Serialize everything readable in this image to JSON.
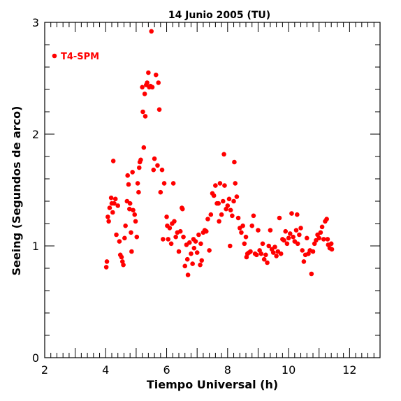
{
  "chart_data": {
    "type": "scatter",
    "title": "14 Junio 2005 (TU)",
    "xlabel": "Tiempo Universal (h)",
    "ylabel": "Seeing (Segundos de arco)",
    "xlim": [
      2,
      13
    ],
    "ylim": [
      0,
      3
    ],
    "xticks": [
      2,
      4,
      6,
      8,
      10,
      12
    ],
    "yticks": [
      0,
      1,
      2,
      3
    ],
    "grid": false,
    "legend": {
      "position": "top-left",
      "label": "T4-SPM",
      "color": "#ff0000"
    },
    "series": [
      {
        "name": "T4-SPM",
        "color": "#ff0000",
        "points": [
          [
            2.32,
            2.7
          ],
          [
            4.02,
            0.81
          ],
          [
            4.04,
            0.86
          ],
          [
            4.07,
            1.26
          ],
          [
            4.1,
            1.22
          ],
          [
            4.13,
            1.34
          ],
          [
            4.18,
            1.43
          ],
          [
            4.2,
            1.38
          ],
          [
            4.23,
            1.3
          ],
          [
            4.25,
            1.76
          ],
          [
            4.28,
            1.38
          ],
          [
            4.32,
            1.42
          ],
          [
            4.35,
            1.1
          ],
          [
            4.4,
            1.36
          ],
          [
            4.45,
            1.04
          ],
          [
            4.48,
            0.92
          ],
          [
            4.52,
            0.9
          ],
          [
            4.55,
            0.86
          ],
          [
            4.58,
            0.83
          ],
          [
            4.62,
            1.07
          ],
          [
            4.65,
            1.18
          ],
          [
            4.7,
            1.4
          ],
          [
            4.72,
            1.63
          ],
          [
            4.75,
            1.55
          ],
          [
            4.78,
            1.33
          ],
          [
            4.8,
            1.38
          ],
          [
            4.83,
            1.12
          ],
          [
            4.85,
            0.95
          ],
          [
            4.88,
            1.66
          ],
          [
            4.9,
            1.32
          ],
          [
            4.95,
            1.28
          ],
          [
            4.98,
            1.22
          ],
          [
            5.02,
            1.08
          ],
          [
            5.05,
            1.56
          ],
          [
            5.08,
            1.48
          ],
          [
            5.1,
            1.7
          ],
          [
            5.12,
            1.75
          ],
          [
            5.15,
            1.77
          ],
          [
            5.2,
            2.42
          ],
          [
            5.22,
            2.2
          ],
          [
            5.25,
            1.88
          ],
          [
            5.28,
            2.36
          ],
          [
            5.3,
            2.16
          ],
          [
            5.33,
            2.44
          ],
          [
            5.36,
            2.46
          ],
          [
            5.4,
            2.55
          ],
          [
            5.43,
            2.42
          ],
          [
            5.47,
            2.43
          ],
          [
            5.5,
            2.92
          ],
          [
            5.53,
            2.42
          ],
          [
            5.57,
            1.68
          ],
          [
            5.6,
            1.78
          ],
          [
            5.65,
            2.53
          ],
          [
            5.7,
            1.72
          ],
          [
            5.73,
            2.46
          ],
          [
            5.76,
            2.22
          ],
          [
            5.8,
            1.48
          ],
          [
            5.85,
            1.68
          ],
          [
            5.88,
            1.06
          ],
          [
            5.92,
            1.56
          ],
          [
            6.0,
            1.26
          ],
          [
            6.02,
            1.18
          ],
          [
            6.05,
            1.06
          ],
          [
            6.1,
            1.16
          ],
          [
            6.15,
            1.02
          ],
          [
            6.18,
            1.2
          ],
          [
            6.22,
            1.56
          ],
          [
            6.25,
            1.22
          ],
          [
            6.3,
            1.08
          ],
          [
            6.35,
            1.12
          ],
          [
            6.4,
            0.95
          ],
          [
            6.45,
            1.13
          ],
          [
            6.5,
            1.34
          ],
          [
            6.52,
            1.33
          ],
          [
            6.55,
            1.08
          ],
          [
            6.6,
            0.82
          ],
          [
            6.65,
            1.01
          ],
          [
            6.68,
            0.88
          ],
          [
            6.7,
            0.74
          ],
          [
            6.75,
            1.03
          ],
          [
            6.8,
            0.93
          ],
          [
            6.85,
            0.84
          ],
          [
            6.88,
            1.06
          ],
          [
            6.9,
            0.98
          ],
          [
            6.95,
            1.04
          ],
          [
            7.0,
            0.94
          ],
          [
            7.05,
            1.1
          ],
          [
            7.1,
            0.83
          ],
          [
            7.12,
            1.02
          ],
          [
            7.15,
            0.87
          ],
          [
            7.2,
            1.12
          ],
          [
            7.25,
            1.14
          ],
          [
            7.3,
            1.13
          ],
          [
            7.35,
            1.24
          ],
          [
            7.4,
            0.96
          ],
          [
            7.45,
            1.28
          ],
          [
            7.5,
            1.47
          ],
          [
            7.55,
            1.45
          ],
          [
            7.6,
            1.54
          ],
          [
            7.65,
            1.38
          ],
          [
            7.7,
            1.38
          ],
          [
            7.72,
            1.22
          ],
          [
            7.75,
            1.56
          ],
          [
            7.8,
            1.28
          ],
          [
            7.85,
            1.4
          ],
          [
            7.88,
            1.82
          ],
          [
            7.9,
            1.54
          ],
          [
            7.95,
            1.33
          ],
          [
            8.0,
            1.36
          ],
          [
            8.05,
            1.42
          ],
          [
            8.08,
            1.0
          ],
          [
            8.1,
            1.32
          ],
          [
            8.15,
            1.27
          ],
          [
            8.2,
            1.4
          ],
          [
            8.22,
            1.75
          ],
          [
            8.25,
            1.56
          ],
          [
            8.3,
            1.44
          ],
          [
            8.35,
            1.25
          ],
          [
            8.4,
            1.16
          ],
          [
            8.45,
            1.12
          ],
          [
            8.5,
            1.18
          ],
          [
            8.55,
            1.02
          ],
          [
            8.6,
            1.08
          ],
          [
            8.62,
            0.9
          ],
          [
            8.65,
            0.93
          ],
          [
            8.7,
            0.94
          ],
          [
            8.75,
            0.95
          ],
          [
            8.8,
            1.18
          ],
          [
            8.85,
            1.27
          ],
          [
            8.9,
            0.93
          ],
          [
            8.95,
            0.92
          ],
          [
            9.0,
            1.14
          ],
          [
            9.05,
            0.96
          ],
          [
            9.1,
            0.93
          ],
          [
            9.15,
            1.02
          ],
          [
            9.2,
            0.88
          ],
          [
            9.25,
            0.92
          ],
          [
            9.3,
            0.85
          ],
          [
            9.35,
            1.0
          ],
          [
            9.4,
            1.14
          ],
          [
            9.45,
            0.97
          ],
          [
            9.5,
            0.94
          ],
          [
            9.55,
            0.99
          ],
          [
            9.6,
            0.91
          ],
          [
            9.65,
            0.95
          ],
          [
            9.7,
            1.25
          ],
          [
            9.75,
            0.93
          ],
          [
            9.8,
            1.06
          ],
          [
            9.85,
            1.05
          ],
          [
            9.9,
            1.13
          ],
          [
            9.95,
            1.02
          ],
          [
            10.0,
            1.07
          ],
          [
            10.05,
            1.11
          ],
          [
            10.1,
            1.29
          ],
          [
            10.15,
            1.08
          ],
          [
            10.2,
            1.04
          ],
          [
            10.25,
            1.14
          ],
          [
            10.28,
            1.28
          ],
          [
            10.3,
            1.02
          ],
          [
            10.35,
            1.1
          ],
          [
            10.4,
            1.16
          ],
          [
            10.45,
            0.96
          ],
          [
            10.5,
            0.86
          ],
          [
            10.55,
            0.92
          ],
          [
            10.6,
            1.07
          ],
          [
            10.65,
            0.93
          ],
          [
            10.7,
            0.96
          ],
          [
            10.75,
            0.75
          ],
          [
            10.8,
            0.95
          ],
          [
            10.85,
            1.02
          ],
          [
            10.9,
            1.05
          ],
          [
            10.95,
            1.1
          ],
          [
            11.0,
            1.07
          ],
          [
            11.05,
            1.12
          ],
          [
            11.1,
            1.17
          ],
          [
            11.15,
            1.06
          ],
          [
            11.2,
            1.22
          ],
          [
            11.25,
            1.24
          ],
          [
            11.28,
            1.06
          ],
          [
            11.3,
            1.01
          ],
          [
            11.35,
            0.98
          ],
          [
            11.4,
            1.02
          ],
          [
            11.42,
            0.97
          ]
        ]
      }
    ]
  }
}
